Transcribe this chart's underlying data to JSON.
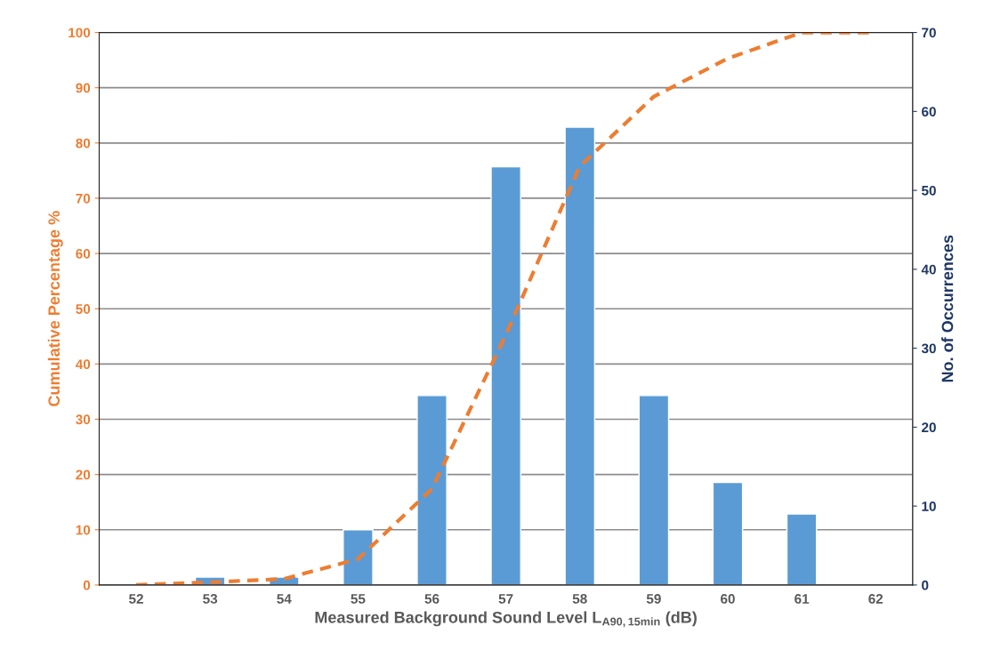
{
  "chart_data": {
    "type": "bar",
    "xlabel": "Measured Background Sound Level L$_{A90,15min}$ (dB)",
    "ylabel": "Cumulative Percentage %",
    "y2label": "No. of Occurrences",
    "categories": [
      "52",
      "53",
      "54",
      "55",
      "56",
      "57",
      "58",
      "59",
      "60",
      "61",
      "62"
    ],
    "series": [
      {
        "axis": "y2",
        "color": "#5b9bd5",
        "values": [
          null,
          1,
          1,
          7,
          24,
          53,
          58,
          24,
          13,
          9,
          null
        ]
      },
      {
        "type": "line",
        "axis": "y",
        "color": "#ed7d31",
        "line_style": "dashed",
        "marker": "none",
        "values": [
          0,
          0.5,
          1.1,
          4.7,
          17.4,
          45.3,
          75.8,
          88.4,
          95.3,
          100,
          100
        ]
      }
    ],
    "ylim": [
      0,
      100
    ],
    "yticks": [
      0,
      10,
      20,
      30,
      40,
      50,
      60,
      70,
      80,
      90,
      100
    ],
    "y2lim": [
      0,
      70
    ],
    "y2ticks": [
      0,
      10,
      20,
      30,
      40,
      50,
      60,
      70
    ],
    "grid": "y",
    "legend": false
  }
}
